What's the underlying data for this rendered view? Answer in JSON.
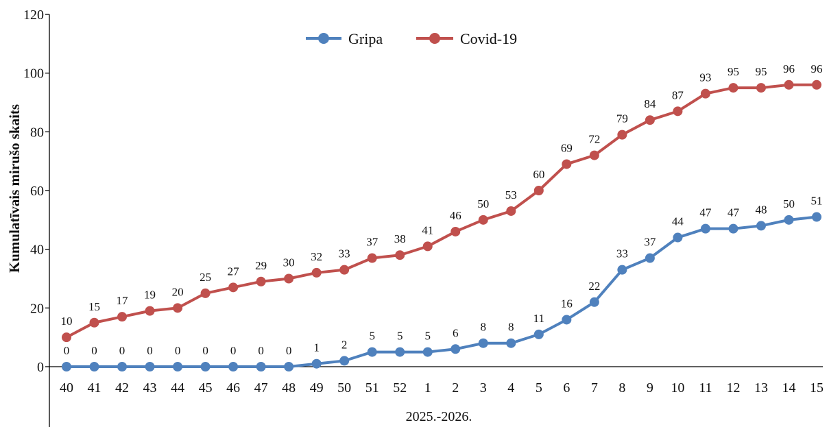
{
  "chart_data": {
    "type": "line",
    "title": "",
    "xlabel": "2025.-2026.",
    "ylabel": "Kumulatīvais mirušo skaits",
    "ylim": [
      0,
      120
    ],
    "yticks": [
      0,
      20,
      40,
      60,
      80,
      100,
      120
    ],
    "grid": false,
    "legend_position": "top-center",
    "categories": [
      "40",
      "41",
      "42",
      "43",
      "44",
      "45",
      "46",
      "47",
      "48",
      "49",
      "50",
      "51",
      "52",
      "1",
      "2",
      "3",
      "4",
      "5",
      "6",
      "7",
      "8",
      "9",
      "10",
      "11",
      "12",
      "13",
      "14",
      "15"
    ],
    "series": [
      {
        "name": "Gripa",
        "color": "#4f81bd",
        "values": [
          0,
          0,
          0,
          0,
          0,
          0,
          0,
          0,
          0,
          1,
          2,
          5,
          5,
          5,
          6,
          8,
          8,
          11,
          16,
          22,
          33,
          37,
          44,
          47,
          47,
          48,
          50,
          51
        ]
      },
      {
        "name": "Covid-19",
        "color": "#c0504d",
        "values": [
          10,
          15,
          17,
          19,
          20,
          25,
          27,
          29,
          30,
          32,
          33,
          37,
          38,
          41,
          46,
          50,
          53,
          60,
          69,
          72,
          79,
          84,
          87,
          93,
          95,
          95,
          96,
          96
        ]
      }
    ]
  }
}
